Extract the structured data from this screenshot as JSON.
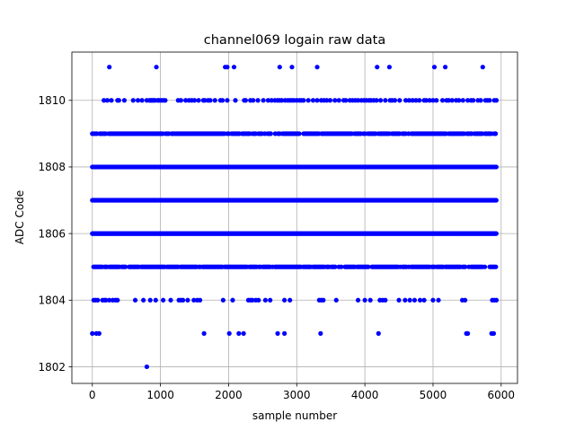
{
  "chart_data": {
    "type": "scatter",
    "title": "channel069 logain raw data",
    "xlabel": "sample number",
    "ylabel": "ADC Code",
    "xlim": [
      -300,
      6240
    ],
    "ylim": [
      1801.5,
      1811.45
    ],
    "xticks": [
      0,
      1000,
      2000,
      3000,
      4000,
      5000,
      6000
    ],
    "yticks": [
      1802,
      1804,
      1806,
      1808,
      1810
    ],
    "grid": true,
    "marker_color": "#0000ff",
    "sample_count_range": [
      0,
      5936
    ],
    "series": [
      {
        "values_by_level": {
          "1802": [
            800
          ],
          "1803": [
            0,
            60,
            100,
            1640,
            2010,
            2150,
            2220,
            2720,
            2820,
            3350,
            4200,
            5490,
            5510,
            5860,
            5890
          ],
          "1811": [
            250,
            940,
            1950,
            1980,
            2080,
            2750,
            2930,
            3300,
            4180,
            4360,
            5020,
            5180,
            5730
          ],
          "1810": [
            170,
            220,
            280,
            370,
            390,
            470,
            600,
            670,
            730,
            800,
            840,
            860,
            880,
            900,
            920,
            960,
            980,
            1010,
            1040,
            1070,
            1260,
            1300,
            1370,
            1420,
            1460,
            1500,
            1560,
            1630,
            1650,
            1700,
            1730,
            1800,
            1880,
            1910,
            1980,
            2100,
            2230,
            2250,
            2320,
            2360,
            2430,
            2510,
            2580,
            2630,
            2680,
            2720,
            2750,
            2780,
            2830,
            2870,
            2900,
            2930,
            2960,
            3000,
            3040,
            3070,
            3100,
            3170,
            3240,
            3300,
            3360,
            3400,
            3440,
            3490,
            3560,
            3620,
            3690,
            3720,
            3780,
            3820,
            3860,
            3900,
            3950,
            3990,
            4020,
            4060,
            4090,
            4130,
            4170,
            4230,
            4300,
            4370,
            4400,
            4440,
            4510,
            4600,
            4650,
            4700,
            4750,
            4800,
            4870,
            4900,
            4950,
            5000,
            5050,
            5140,
            5200,
            5230,
            5280,
            5340,
            5380,
            5440,
            5510,
            5560,
            5590,
            5660,
            5700,
            5770,
            5800,
            5830,
            5900,
            5930
          ],
          "1804": [
            20,
            50,
            80,
            150,
            180,
            200,
            250,
            300,
            340,
            370,
            630,
            750,
            850,
            930,
            1040,
            1150,
            1270,
            1300,
            1330,
            1400,
            1490,
            1540,
            1580,
            1920,
            2060,
            2290,
            2320,
            2350,
            2400,
            2440,
            2540,
            2610,
            2820,
            2900,
            3330,
            3360,
            3390,
            3580,
            3900,
            4000,
            4080,
            4220,
            4260,
            4300,
            4500,
            4590,
            4660,
            4730,
            4810,
            4870,
            5000,
            5080,
            5430,
            5470,
            5870,
            5900,
            5930
          ]
        },
        "dense_levels": {
          "1805": [
            0,
            5936
          ],
          "1806": [
            0,
            5936
          ],
          "1807": [
            0,
            5936
          ],
          "1808": [
            0,
            5936
          ],
          "1809": [
            0,
            5936
          ]
        }
      }
    ]
  }
}
